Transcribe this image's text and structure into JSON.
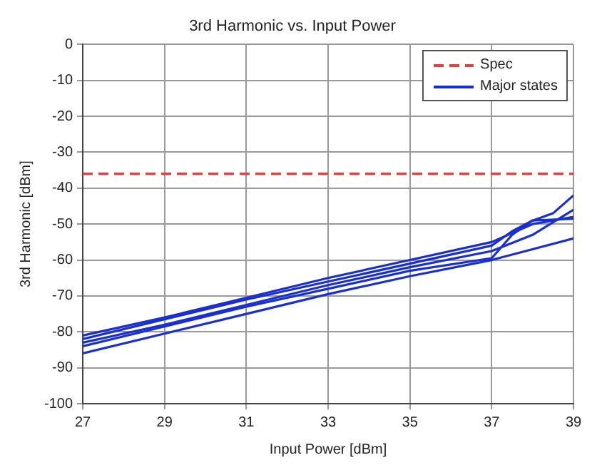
{
  "chart_data": {
    "type": "line",
    "title": "3rd Harmonic vs. Input Power",
    "xlabel": "Input Power [dBm]",
    "ylabel": "3rd Harmonic [dBm]",
    "xlim": [
      27,
      39
    ],
    "xticks": [
      27,
      29,
      31,
      33,
      35,
      37,
      39
    ],
    "ylim": [
      -100,
      0
    ],
    "yticks": [
      -100,
      -90,
      -80,
      -70,
      -60,
      -50,
      -40,
      -30,
      -20,
      -10,
      0
    ],
    "grid": true,
    "legend": "top right",
    "marker": "none",
    "series": [
      {
        "name": "Spec",
        "color": "#e04040",
        "line_style": "dashed",
        "x": [
          27,
          39
        ],
        "values": [
          -36,
          -36
        ]
      },
      {
        "name": "Major states",
        "color": "#1a2fd0",
        "line_style": "solid",
        "x": [
          27,
          29,
          31,
          33,
          35,
          37,
          38,
          39
        ],
        "values": [
          -81,
          -76,
          -70.5,
          -65,
          -60,
          -55,
          -50,
          -48
        ]
      },
      {
        "color": "#1a2fd0",
        "line_style": "solid",
        "x": [
          27,
          29,
          31,
          33,
          35,
          37,
          37.5,
          38,
          38.5,
          39
        ],
        "values": [
          -82,
          -76.5,
          -71,
          -66,
          -61,
          -56,
          -52,
          -49,
          -47,
          -42
        ]
      },
      {
        "color": "#1a2fd0",
        "line_style": "solid",
        "x": [
          27,
          29,
          31,
          33,
          35,
          37,
          38,
          39
        ],
        "values": [
          -83,
          -78,
          -72.5,
          -67,
          -62,
          -57.5,
          -53,
          -46
        ]
      },
      {
        "color": "#1a2fd0",
        "line_style": "solid",
        "x": [
          27,
          29,
          31,
          33,
          35,
          37,
          37.5,
          38,
          39
        ],
        "values": [
          -84,
          -78.5,
          -73,
          -68,
          -63,
          -59.5,
          -53,
          -49,
          -48.5
        ]
      },
      {
        "color": "#1a2fd0",
        "line_style": "solid",
        "x": [
          27,
          29,
          31,
          33,
          35,
          37,
          39
        ],
        "values": [
          -86,
          -80.5,
          -75,
          -69.5,
          -64.5,
          -60,
          -54
        ]
      }
    ]
  }
}
